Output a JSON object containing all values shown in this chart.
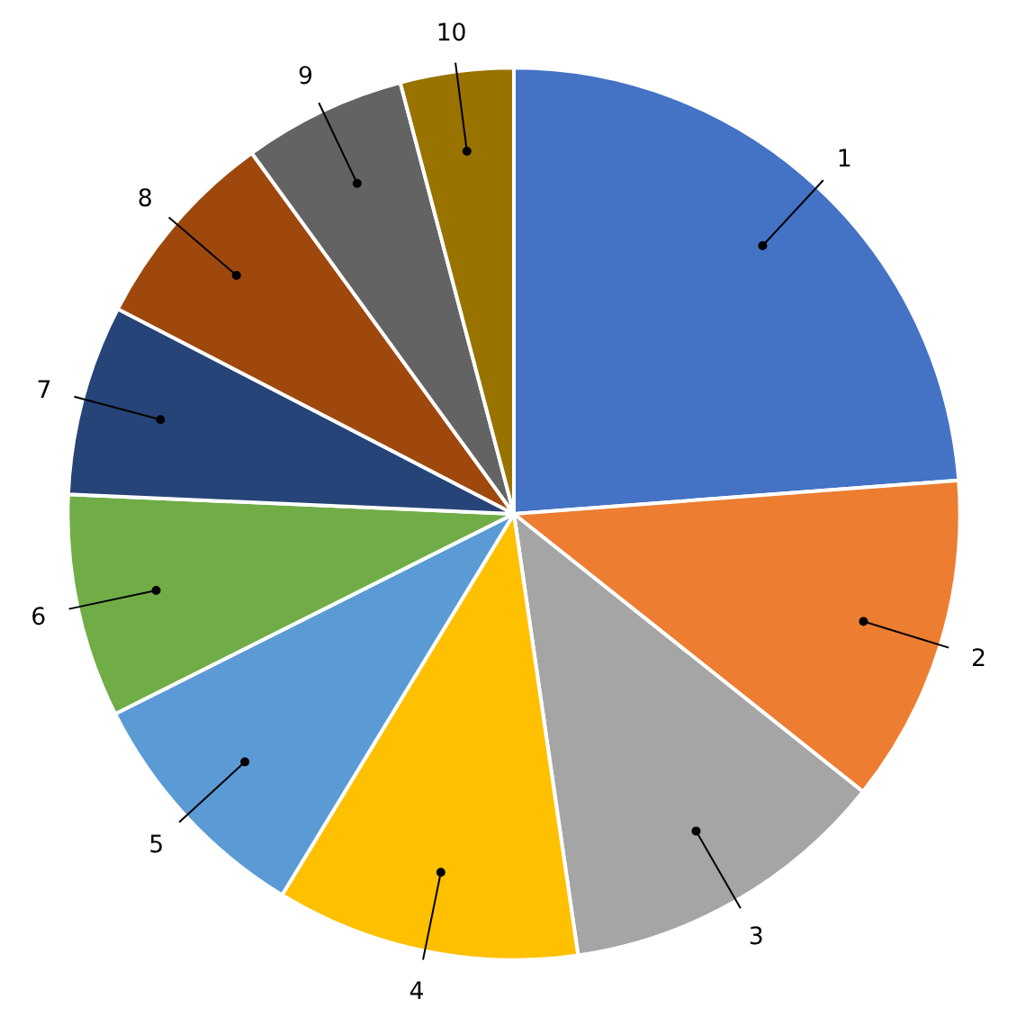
{
  "chart_data": {
    "type": "pie",
    "categories": [
      "1",
      "2",
      "3",
      "4",
      "5",
      "6",
      "7",
      "8",
      "9",
      "10"
    ],
    "values": [
      23.8,
      11.9,
      12.0,
      11.0,
      8.9,
      8.1,
      6.9,
      7.4,
      5.9,
      4.1
    ],
    "colors": [
      "#4472c4",
      "#ed7d31",
      "#a5a5a5",
      "#ffc000",
      "#5b9bd5",
      "#70ad47",
      "#264478",
      "#9e480e",
      "#636363",
      "#997300"
    ],
    "legend": false
  }
}
